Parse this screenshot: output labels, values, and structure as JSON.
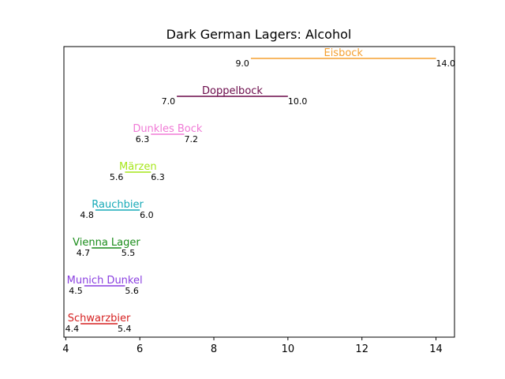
{
  "chart_data": {
    "type": "range-bar",
    "title": "Dark German Lagers: Alcohol",
    "xlabel": "",
    "ylabel": "",
    "xlim": [
      3.95,
      14.5
    ],
    "xticks": [
      4,
      6,
      8,
      10,
      12,
      14
    ],
    "grid": false,
    "items": [
      {
        "name": "Schwarzbier",
        "min": 4.4,
        "max": 5.4,
        "min_label": "4.4",
        "max_label": "5.4",
        "color": "#d62020"
      },
      {
        "name": "Munich Dunkel",
        "min": 4.5,
        "max": 5.6,
        "min_label": "4.5",
        "max_label": "5.6",
        "color": "#8a3fe0"
      },
      {
        "name": "Vienna Lager",
        "min": 4.7,
        "max": 5.5,
        "min_label": "4.7",
        "max_label": "5.5",
        "color": "#1a8c1a"
      },
      {
        "name": "Rauchbier",
        "min": 4.8,
        "max": 6.0,
        "min_label": "4.8",
        "max_label": "6.0",
        "color": "#17aab8"
      },
      {
        "name": "Märzen",
        "min": 5.6,
        "max": 6.3,
        "min_label": "5.6",
        "max_label": "6.3",
        "color": "#a6e61a"
      },
      {
        "name": "Dunkles Bock",
        "min": 6.3,
        "max": 7.2,
        "min_label": "6.3",
        "max_label": "7.2",
        "color": "#f07ad6"
      },
      {
        "name": "Doppelbock",
        "min": 7.0,
        "max": 10.0,
        "min_label": "7.0",
        "max_label": "10.0",
        "color": "#6b0a4a"
      },
      {
        "name": "Eisbock",
        "min": 9.0,
        "max": 14.0,
        "min_label": "9.0",
        "max_label": "14.0",
        "color": "#f5a030"
      }
    ]
  }
}
